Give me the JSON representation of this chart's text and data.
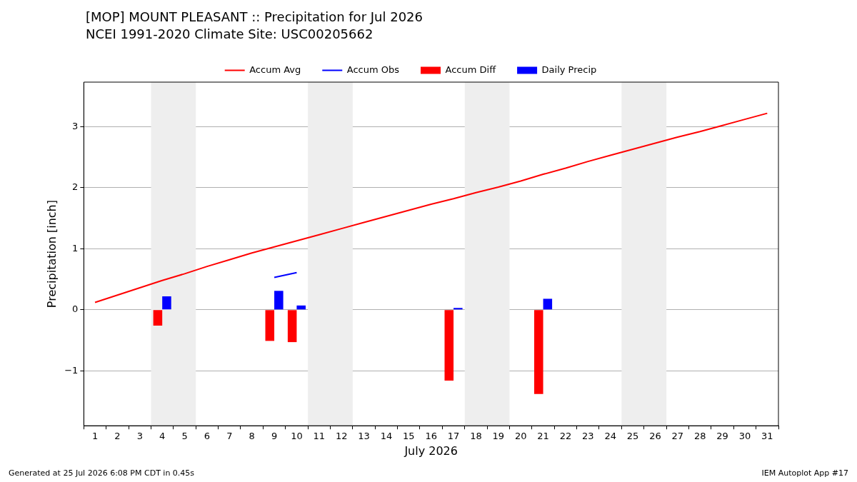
{
  "chart_data": {
    "type": "line",
    "title": "[MOP] MOUNT PLEASANT :: Precipitation for Jul 2026",
    "subtitle": "NCEI 1991-2020 Climate Site: USC00205662",
    "xlabel": "July 2026",
    "ylabel": "Precipitation [inch]",
    "annotations": [
      "Generated at 25 Jul 2026 6:08 PM CDT in 0.45s",
      "IEM Autoplot App #17"
    ],
    "xlim": [
      0.5,
      31.5
    ],
    "xticks": [
      1,
      2,
      3,
      4,
      5,
      6,
      7,
      8,
      9,
      10,
      11,
      12,
      13,
      14,
      15,
      16,
      17,
      18,
      19,
      20,
      21,
      22,
      23,
      24,
      25,
      26,
      27,
      28,
      29,
      30,
      31
    ],
    "ylim": [
      -1.9,
      3.73
    ],
    "yticks": [
      -1,
      0,
      1,
      2,
      3
    ],
    "grid": "y",
    "legend": "top",
    "bands": [
      {
        "axis": "x",
        "from": 3.5,
        "to": 5.5,
        "color": "#eeeeee"
      },
      {
        "axis": "x",
        "from": 10.5,
        "to": 12.5,
        "color": "#eeeeee"
      },
      {
        "axis": "x",
        "from": 17.5,
        "to": 19.5,
        "color": "#eeeeee"
      },
      {
        "axis": "x",
        "from": 24.5,
        "to": 26.5,
        "color": "#eeeeee"
      }
    ],
    "series": [
      {
        "name": "Accum Avg",
        "type": "line",
        "color": "#ff0000",
        "x": [
          1,
          2,
          3,
          4,
          5,
          6,
          7,
          8,
          9,
          10,
          11,
          12,
          13,
          14,
          15,
          16,
          17,
          18,
          19,
          20,
          21,
          22,
          23,
          24,
          25,
          26,
          27,
          28,
          29,
          30,
          31
        ],
        "values": [
          0.12,
          0.24,
          0.36,
          0.48,
          0.59,
          0.71,
          0.82,
          0.93,
          1.03,
          1.13,
          1.23,
          1.33,
          1.43,
          1.53,
          1.63,
          1.73,
          1.82,
          1.92,
          2.01,
          2.11,
          2.22,
          2.32,
          2.43,
          2.53,
          2.63,
          2.73,
          2.83,
          2.92,
          3.02,
          3.12,
          3.22
        ]
      },
      {
        "name": "Accum Obs",
        "type": "line",
        "color": "#0000ff",
        "x": [
          9,
          10
        ],
        "values": [
          0.53,
          0.61
        ]
      },
      {
        "name": "Accum Diff",
        "type": "bar",
        "color": "#ff0000",
        "x": [
          4,
          9,
          10,
          17,
          21
        ],
        "values": [
          -0.26,
          -0.51,
          -0.53,
          -1.16,
          -1.38
        ]
      },
      {
        "name": "Daily Precip",
        "type": "bar",
        "color": "#0000ff",
        "x": [
          4,
          9,
          10,
          17,
          21
        ],
        "values": [
          0.22,
          0.31,
          0.07,
          0.03,
          0.18
        ]
      }
    ]
  }
}
